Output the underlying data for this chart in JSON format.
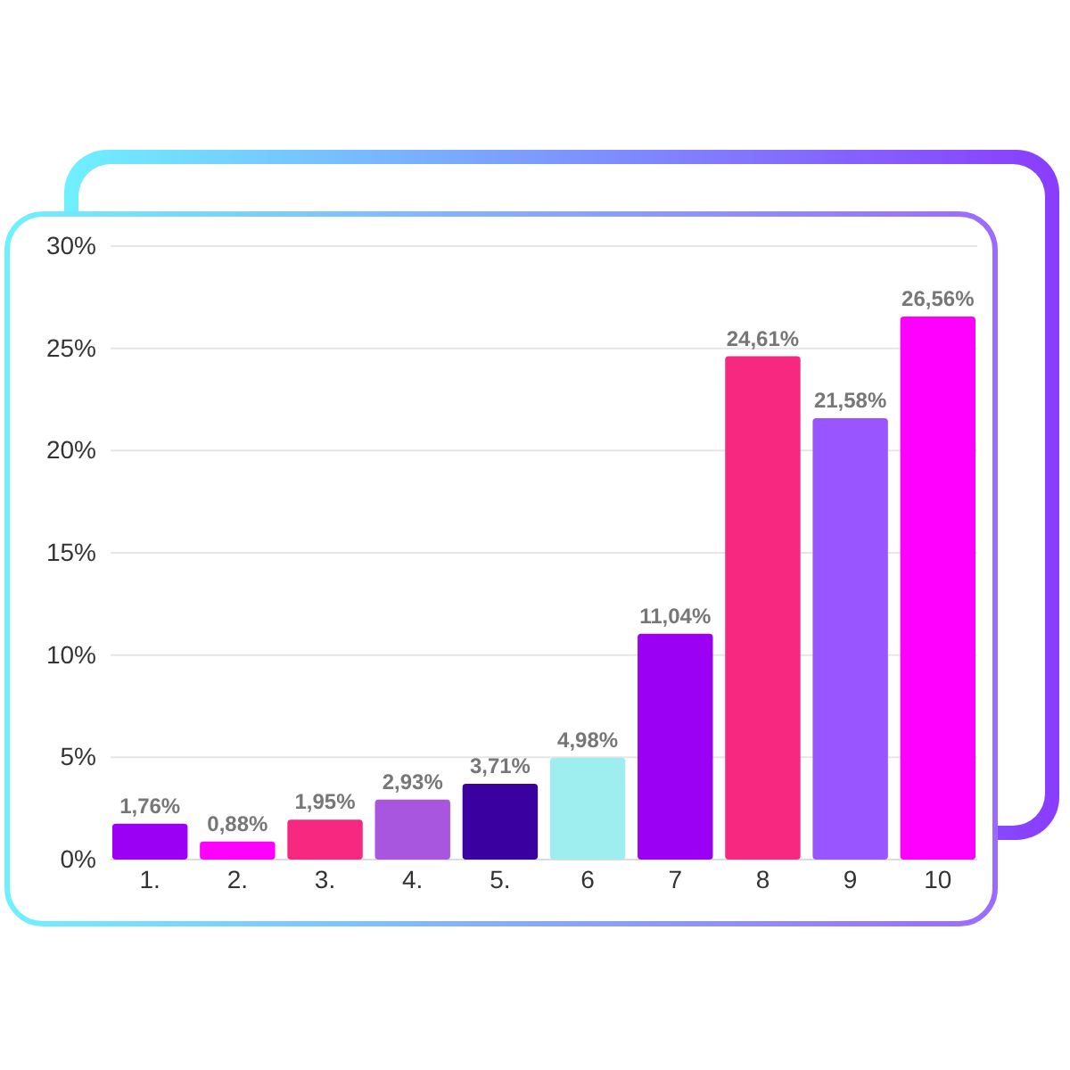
{
  "chart_data": {
    "type": "bar",
    "categories": [
      "1.",
      "2.",
      "3.",
      "4.",
      "5.",
      "6",
      "7",
      "8",
      "9",
      "10"
    ],
    "values": [
      1.76,
      0.88,
      1.95,
      2.93,
      3.71,
      4.98,
      11.04,
      24.61,
      21.58,
      26.56
    ],
    "colors": [
      "#9b00f5",
      "#ff00ff",
      "#f7287f",
      "#a855e0",
      "#3b00a0",
      "#9eeef0",
      "#9b00f5",
      "#f7287f",
      "#9955ff",
      "#ff00ff"
    ],
    "value_labels": [
      "1,76%",
      "0,88%",
      "1,95%",
      "2,93%",
      "3,71%",
      "4,98%",
      "11,04%",
      "24,61%",
      "21,58%",
      "26,56%"
    ],
    "ylim": [
      0,
      30
    ],
    "yticks": [
      {
        "value": 0,
        "label": "0%"
      },
      {
        "value": 5,
        "label": "5%"
      },
      {
        "value": 10,
        "label": "10%"
      },
      {
        "value": 15,
        "label": "15%"
      },
      {
        "value": 20,
        "label": "20%"
      },
      {
        "value": 25,
        "label": "25%"
      },
      {
        "value": 30,
        "label": "30%"
      }
    ],
    "grid": "y"
  }
}
